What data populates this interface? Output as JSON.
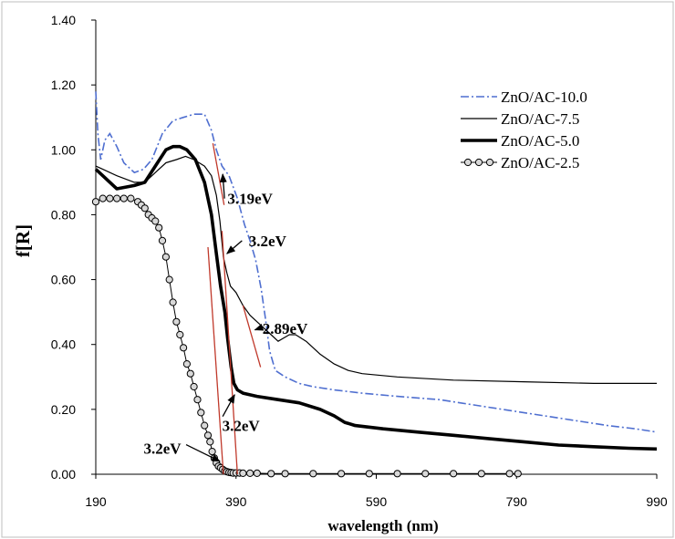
{
  "chart_data": {
    "type": "line",
    "xlabel": "wavelength (nm)",
    "ylabel": "f[R]",
    "xlim": [
      190,
      990
    ],
    "ylim": [
      0,
      1.4
    ],
    "xticks": [
      "190",
      "390",
      "590",
      "790",
      "990"
    ],
    "yticks": [
      "0.00",
      "0.20",
      "0.40",
      "0.60",
      "0.80",
      "1.00",
      "1.20",
      "1.40"
    ],
    "grid": false,
    "legend_position": "top-right",
    "series": [
      {
        "name": "ZnO/AC-10.0",
        "style": "dash-dot",
        "color": "#4f6fd0",
        "x": [
          190,
          193,
          197,
          203,
          210,
          220,
          230,
          245,
          258,
          270,
          285,
          300,
          315,
          330,
          345,
          355,
          362,
          370,
          380,
          392,
          402,
          410,
          418,
          426,
          432,
          438,
          446,
          460,
          480,
          500,
          530,
          570,
          620,
          680,
          740,
          800,
          860,
          920,
          960,
          990
        ],
        "y": [
          1.18,
          1.05,
          0.97,
          1.03,
          1.05,
          1.01,
          0.96,
          0.93,
          0.94,
          0.97,
          1.05,
          1.09,
          1.1,
          1.11,
          1.11,
          1.06,
          1.0,
          0.95,
          0.92,
          0.85,
          0.77,
          0.72,
          0.66,
          0.57,
          0.48,
          0.38,
          0.32,
          0.3,
          0.28,
          0.27,
          0.26,
          0.25,
          0.24,
          0.23,
          0.21,
          0.19,
          0.17,
          0.15,
          0.14,
          0.13
        ]
      },
      {
        "name": "ZnO/AC-7.5",
        "style": "thin",
        "color": "#000000",
        "x": [
          190,
          200,
          220,
          245,
          260,
          275,
          290,
          305,
          318,
          330,
          345,
          355,
          362,
          367,
          372,
          377,
          382,
          390,
          400,
          410,
          420,
          430,
          440,
          450,
          458,
          466,
          475,
          490,
          510,
          530,
          550,
          570,
          620,
          700,
          800,
          900,
          990
        ],
        "y": [
          0.95,
          0.94,
          0.92,
          0.9,
          0.9,
          0.93,
          0.96,
          0.97,
          0.98,
          0.97,
          0.95,
          0.92,
          0.86,
          0.78,
          0.67,
          0.62,
          0.58,
          0.56,
          0.52,
          0.49,
          0.47,
          0.45,
          0.43,
          0.41,
          0.42,
          0.43,
          0.43,
          0.41,
          0.37,
          0.34,
          0.32,
          0.31,
          0.3,
          0.29,
          0.285,
          0.28,
          0.28
        ]
      },
      {
        "name": "ZnO/AC-5.0",
        "style": "thick",
        "color": "#000000",
        "x": [
          190,
          200,
          220,
          245,
          260,
          275,
          290,
          300,
          310,
          320,
          332,
          345,
          355,
          362,
          368,
          374,
          378,
          383,
          387,
          392,
          400,
          420,
          450,
          480,
          510,
          530,
          545,
          560,
          600,
          650,
          700,
          750,
          800,
          850,
          900,
          950,
          990
        ],
        "y": [
          0.94,
          0.92,
          0.88,
          0.89,
          0.9,
          0.95,
          1.0,
          1.01,
          1.01,
          1.0,
          0.97,
          0.9,
          0.8,
          0.68,
          0.58,
          0.5,
          0.42,
          0.33,
          0.28,
          0.26,
          0.25,
          0.24,
          0.23,
          0.22,
          0.2,
          0.18,
          0.16,
          0.15,
          0.14,
          0.13,
          0.12,
          0.11,
          0.1,
          0.09,
          0.085,
          0.08,
          0.078
        ]
      },
      {
        "name": "ZnO/AC-2.5",
        "style": "circle-markers",
        "color": "#000000",
        "x": [
          190,
          200,
          210,
          220,
          230,
          240,
          250,
          255,
          260,
          265,
          270,
          275,
          280,
          285,
          290,
          295,
          300,
          305,
          310,
          315,
          320,
          325,
          330,
          335,
          340,
          345,
          350,
          353,
          356,
          359,
          362,
          365,
          368,
          371,
          374,
          377,
          380,
          383,
          386,
          390,
          395,
          400,
          410,
          420,
          440,
          460,
          500,
          540,
          580,
          620,
          660,
          700,
          740,
          780,
          792
        ],
        "y": [
          0.84,
          0.85,
          0.85,
          0.85,
          0.85,
          0.85,
          0.84,
          0.83,
          0.82,
          0.8,
          0.79,
          0.78,
          0.76,
          0.72,
          0.67,
          0.6,
          0.53,
          0.47,
          0.43,
          0.39,
          0.34,
          0.31,
          0.27,
          0.23,
          0.19,
          0.15,
          0.12,
          0.1,
          0.07,
          0.05,
          0.035,
          0.025,
          0.02,
          0.015,
          0.01,
          0.008,
          0.006,
          0.005,
          0.004,
          0.004,
          0.004,
          0.003,
          0.003,
          0.003,
          0.002,
          0.002,
          0.002,
          0.002,
          0.002,
          0.002,
          0.002,
          0.002,
          0.002,
          0.002,
          0.002
        ]
      }
    ],
    "tangent_lines": [
      {
        "x1": 357,
        "y1": 1.02,
        "x2": 373,
        "y2": 0.83
      },
      {
        "x1": 350,
        "y1": 0.7,
        "x2": 372,
        "y2": 0.0
      },
      {
        "x1": 370,
        "y1": 0.75,
        "x2": 392,
        "y2": 0.0
      },
      {
        "x1": 400,
        "y1": 0.52,
        "x2": 425,
        "y2": 0.33
      }
    ],
    "annotations": [
      {
        "text": "3.19eV",
        "x": 410,
        "y": 0.85,
        "arrow_to": [
          371,
          0.925
        ]
      },
      {
        "text": "3.2eV",
        "x": 435,
        "y": 0.72,
        "arrow_to": [
          377,
          0.68
        ]
      },
      {
        "text": "2.89eV",
        "x": 460,
        "y": 0.45,
        "arrow_to": [
          417,
          0.445
        ]
      },
      {
        "text": "3.2eV",
        "x": 397,
        "y": 0.15,
        "arrow_to": [
          388,
          0.245
        ]
      },
      {
        "text": "3.2eV",
        "x": 285,
        "y": 0.08,
        "arrow_to": [
          367,
          0.04
        ]
      }
    ]
  }
}
